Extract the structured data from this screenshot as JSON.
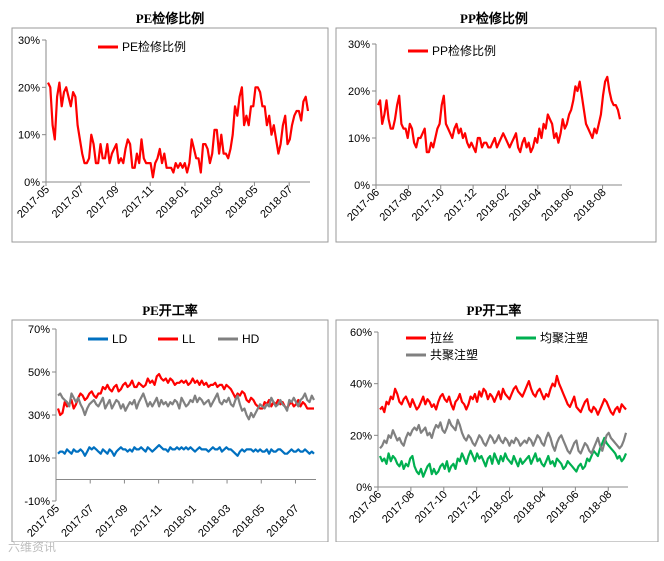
{
  "watermark": "六维资讯",
  "chart_data": [
    {
      "id": "pe_maint",
      "type": "line",
      "title": "PE检修比例",
      "x_ticks": [
        "2017-05",
        "2017-07",
        "2017-09",
        "2017-11",
        "2018-01",
        "2018-03",
        "2018-05",
        "2018-07"
      ],
      "y_ticks": [
        "0%",
        "10%",
        "20%",
        "30%"
      ],
      "ylim": [
        0,
        30
      ],
      "grid": false,
      "legend": "top-left",
      "series": [
        {
          "name": "PE检修比例",
          "color": "#ff0000",
          "values": [
            21,
            20,
            12,
            9,
            18,
            21,
            16,
            19,
            20,
            18,
            16,
            19,
            18,
            12,
            9,
            6,
            4,
            4,
            5,
            10,
            8,
            4,
            4,
            8,
            5,
            5,
            8,
            4,
            6,
            7,
            8,
            4,
            5,
            4,
            7,
            9,
            8,
            3,
            3,
            6,
            4,
            9,
            5,
            4,
            4,
            4,
            1,
            4,
            5,
            7,
            4,
            6,
            3,
            3,
            3,
            2,
            4,
            3,
            4,
            3,
            4,
            2,
            4,
            9,
            7,
            5,
            5,
            2,
            8,
            8,
            7,
            4,
            6,
            11,
            11,
            6,
            10,
            6,
            6,
            5,
            7,
            10,
            16,
            14,
            18,
            20,
            12,
            14,
            12,
            16,
            16,
            20,
            20,
            19,
            16,
            16,
            12,
            14,
            10,
            12,
            9,
            6,
            8,
            12,
            14,
            8,
            9,
            12,
            14,
            15,
            15,
            13,
            17,
            18,
            15
          ]
        }
      ]
    },
    {
      "id": "pp_maint",
      "type": "line",
      "title": "PP检修比例",
      "x_ticks": [
        "2017-06",
        "2017-08",
        "2017-10",
        "2017-12",
        "2018-02",
        "2018-04",
        "2018-06",
        "2018-08"
      ],
      "y_ticks": [
        "0%",
        "10%",
        "20%",
        "30%"
      ],
      "ylim": [
        0,
        30
      ],
      "grid": false,
      "legend": "top-left",
      "series": [
        {
          "name": "PP检修比例",
          "color": "#ff0000",
          "values": [
            17,
            18,
            13,
            15,
            18,
            14,
            12,
            12,
            14,
            17,
            19,
            13,
            12,
            12,
            10,
            13,
            12,
            9,
            8,
            10,
            10,
            11,
            12,
            7,
            7,
            9,
            8,
            10,
            12,
            13,
            17,
            19,
            13,
            12,
            11,
            10,
            12,
            13,
            11,
            12,
            10,
            11,
            9,
            8,
            9,
            8,
            7,
            10,
            10,
            8,
            9,
            9,
            8,
            8,
            9,
            10,
            8,
            9,
            10,
            11,
            10,
            9,
            8,
            9,
            10,
            11,
            8,
            7,
            9,
            10,
            8,
            9,
            7,
            8,
            10,
            9,
            12,
            10,
            13,
            12,
            15,
            14,
            13,
            10,
            11,
            9,
            11,
            14,
            12,
            13,
            15,
            16,
            18,
            21,
            20,
            22,
            19,
            16,
            13,
            12,
            11,
            10,
            12,
            11,
            13,
            15,
            19,
            22,
            23,
            20,
            18,
            17,
            17,
            16,
            14
          ]
        }
      ]
    },
    {
      "id": "pe_rate",
      "type": "line",
      "title": "PE开工率",
      "x_ticks": [
        "2017-05",
        "2017-07",
        "2017-09",
        "2017-11",
        "2018-01",
        "2018-03",
        "2018-05",
        "2018-07"
      ],
      "y_ticks": [
        "-10%",
        "10%",
        "30%",
        "50%",
        "70%"
      ],
      "ylim": [
        -10,
        70
      ],
      "grid": false,
      "legend": "top",
      "series": [
        {
          "name": "LD",
          "color": "#0070c0",
          "values": [
            12,
            13,
            13,
            12,
            14,
            13,
            12,
            14,
            13,
            13,
            14,
            13,
            11,
            13,
            15,
            14,
            15,
            14,
            13,
            12,
            14,
            13,
            12,
            14,
            13,
            11,
            13,
            14,
            15,
            14,
            14,
            13,
            14,
            13,
            15,
            14,
            14,
            15,
            14,
            13,
            15,
            14,
            13,
            14,
            15,
            16,
            15,
            14,
            14,
            13,
            15,
            14,
            14,
            15,
            14,
            15,
            14,
            15,
            14,
            15,
            14,
            13,
            14,
            15,
            14,
            14,
            14,
            13,
            14,
            15,
            14,
            14,
            15,
            13,
            14,
            15,
            14,
            14,
            13,
            12,
            11,
            13,
            14,
            13,
            14,
            14,
            14,
            13,
            14,
            13,
            14,
            13,
            13,
            14,
            12,
            14,
            13,
            13,
            14,
            14,
            13,
            12,
            12,
            13,
            14,
            13,
            13,
            14,
            13,
            13,
            14,
            13,
            12,
            13,
            12
          ]
        },
        {
          "name": "LL",
          "color": "#ff0000",
          "values": [
            33,
            30,
            31,
            36,
            34,
            35,
            37,
            33,
            35,
            38,
            40,
            39,
            37,
            38,
            40,
            41,
            39,
            38,
            40,
            40,
            43,
            42,
            44,
            42,
            41,
            43,
            44,
            41,
            42,
            44,
            45,
            43,
            44,
            46,
            43,
            43,
            45,
            44,
            43,
            44,
            47,
            45,
            46,
            44,
            48,
            49,
            47,
            46,
            47,
            45,
            47,
            46,
            44,
            45,
            45,
            46,
            45,
            46,
            44,
            45,
            47,
            45,
            46,
            44,
            46,
            44,
            45,
            43,
            44,
            44,
            45,
            43,
            44,
            44,
            42,
            44,
            43,
            42,
            40,
            38,
            40,
            39,
            41,
            40,
            37,
            36,
            38,
            37,
            35,
            34,
            33,
            33,
            36,
            35,
            37,
            34,
            36,
            35,
            37,
            35,
            36,
            34,
            33,
            35,
            36,
            34,
            35,
            37,
            34,
            36,
            35,
            33,
            33,
            33,
            33
          ]
        },
        {
          "name": "HD",
          "color": "#808080",
          "values": [
            39,
            40,
            38,
            37,
            36,
            34,
            40,
            38,
            36,
            38,
            35,
            33,
            30,
            33,
            35,
            36,
            37,
            35,
            34,
            36,
            38,
            33,
            35,
            37,
            33,
            35,
            37,
            36,
            33,
            35,
            32,
            34,
            36,
            35,
            37,
            33,
            36,
            38,
            40,
            37,
            34,
            36,
            34,
            36,
            38,
            34,
            37,
            35,
            36,
            34,
            36,
            35,
            37,
            36,
            33,
            38,
            36,
            34,
            35,
            37,
            36,
            39,
            36,
            38,
            37,
            35,
            36,
            37,
            34,
            36,
            38,
            40,
            36,
            35,
            37,
            36,
            38,
            35,
            34,
            37,
            39,
            35,
            32,
            33,
            30,
            28,
            31,
            29,
            31,
            33,
            35,
            34,
            33,
            35,
            34,
            38,
            36,
            34,
            35,
            37,
            35,
            34,
            32,
            37,
            36,
            38,
            36,
            34,
            37,
            38,
            40,
            37,
            36,
            39,
            37
          ]
        }
      ]
    },
    {
      "id": "pp_rate",
      "type": "line",
      "title": "PP开工率",
      "x_ticks": [
        "2017-06",
        "2017-08",
        "2017-10",
        "2017-12",
        "2018-02",
        "2018-04",
        "2018-06",
        "2018-08"
      ],
      "y_ticks": [
        "0%",
        "20%",
        "40%",
        "60%"
      ],
      "ylim": [
        0,
        60
      ],
      "grid": false,
      "legend": "top-left",
      "series": [
        {
          "name": "拉丝",
          "color": "#ff0000",
          "values": [
            30,
            31,
            29,
            33,
            32,
            35,
            34,
            38,
            36,
            33,
            32,
            34,
            35,
            33,
            31,
            34,
            32,
            30,
            31,
            33,
            35,
            32,
            34,
            33,
            31,
            32,
            30,
            33,
            35,
            36,
            34,
            33,
            35,
            32,
            30,
            33,
            34,
            36,
            33,
            32,
            30,
            32,
            35,
            34,
            36,
            33,
            37,
            35,
            38,
            37,
            34,
            36,
            35,
            33,
            35,
            37,
            34,
            38,
            36,
            35,
            34,
            36,
            38,
            39,
            37,
            36,
            35,
            37,
            39,
            41,
            38,
            36,
            35,
            37,
            38,
            36,
            34,
            36,
            35,
            38,
            40,
            39,
            43,
            40,
            38,
            36,
            34,
            32,
            31,
            33,
            35,
            31,
            30,
            29,
            31,
            33,
            34,
            30,
            29,
            31,
            30,
            28,
            30,
            32,
            34,
            33,
            31,
            29,
            28,
            30,
            31,
            29,
            32,
            31,
            30
          ]
        },
        {
          "name": "均聚注塑",
          "color": "#00b050",
          "values": [
            12,
            10,
            11,
            9,
            13,
            10,
            12,
            11,
            9,
            8,
            10,
            7,
            9,
            8,
            11,
            12,
            8,
            6,
            5,
            7,
            4,
            6,
            8,
            9,
            5,
            7,
            5,
            6,
            8,
            9,
            7,
            10,
            6,
            8,
            9,
            7,
            11,
            10,
            13,
            11,
            9,
            12,
            14,
            12,
            10,
            13,
            11,
            12,
            10,
            8,
            11,
            12,
            9,
            13,
            11,
            9,
            12,
            10,
            13,
            11,
            10,
            9,
            12,
            10,
            8,
            11,
            9,
            10,
            11,
            12,
            9,
            11,
            13,
            10,
            11,
            9,
            8,
            10,
            12,
            9,
            10,
            8,
            11,
            10,
            9,
            7,
            8,
            10,
            9,
            8,
            7,
            6,
            8,
            9,
            7,
            8,
            11,
            10,
            12,
            14,
            13,
            12,
            15,
            17,
            19,
            17,
            16,
            15,
            14,
            13,
            11,
            12,
            10,
            11,
            13
          ]
        },
        {
          "name": "共聚注塑",
          "color": "#808080",
          "values": [
            15,
            16,
            18,
            17,
            20,
            19,
            22,
            20,
            18,
            19,
            17,
            16,
            19,
            21,
            20,
            22,
            23,
            22,
            24,
            21,
            22,
            23,
            20,
            21,
            19,
            22,
            24,
            23,
            25,
            22,
            21,
            23,
            26,
            24,
            23,
            22,
            26,
            24,
            21,
            19,
            18,
            20,
            19,
            17,
            16,
            18,
            20,
            19,
            17,
            16,
            18,
            20,
            19,
            17,
            18,
            20,
            18,
            17,
            19,
            18,
            16,
            18,
            17,
            19,
            18,
            16,
            17,
            18,
            17,
            19,
            18,
            16,
            18,
            20,
            19,
            17,
            16,
            19,
            21,
            19,
            16,
            14,
            17,
            19,
            20,
            18,
            16,
            14,
            13,
            15,
            17,
            18,
            14,
            13,
            15,
            17,
            16,
            14,
            13,
            15,
            17,
            19,
            16,
            14,
            17,
            20,
            21,
            19,
            18,
            17,
            16,
            15,
            16,
            18,
            21
          ]
        }
      ]
    }
  ]
}
